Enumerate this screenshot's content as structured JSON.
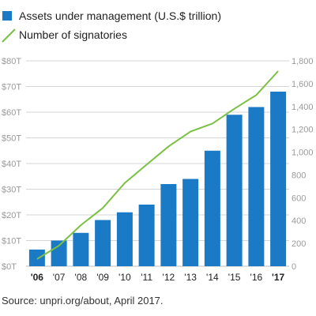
{
  "chart_data": {
    "type": "bar",
    "categories": [
      "'06",
      "'07",
      "'08",
      "'09",
      "'10",
      "'11",
      "'12",
      "'13",
      "'14",
      "'15",
      "'16",
      "'17"
    ],
    "bold_categories": [
      "'06",
      "'17"
    ],
    "series": [
      {
        "name": "Assets under management (U.S.$ trillion)",
        "type": "bar",
        "axis": "left",
        "color": "#1a7ac6",
        "values": [
          6.5,
          10,
          13,
          18,
          21,
          24,
          32,
          34,
          45,
          59,
          62,
          68
        ]
      },
      {
        "name": "Number of signatories",
        "type": "line",
        "axis": "right",
        "color": "#7ac143",
        "values": [
          63,
          180,
          360,
          510,
          730,
          890,
          1050,
          1180,
          1250,
          1380,
          1500,
          1710
        ]
      }
    ],
    "y_left": {
      "ylim": [
        0,
        80
      ],
      "ticks": [
        0,
        10,
        20,
        30,
        40,
        50,
        60,
        70,
        80
      ],
      "tick_labels": [
        "$0T",
        "$10T",
        "$20T",
        "$30T",
        "$40T",
        "$50T",
        "$60T",
        "$70T",
        "$80T"
      ]
    },
    "y_right": {
      "ylim": [
        0,
        1800
      ],
      "ticks": [
        0,
        200,
        400,
        600,
        800,
        1000,
        1200,
        1400,
        1600,
        1800
      ],
      "tick_labels": [
        "0",
        "200",
        "400",
        "600",
        "800",
        "1,000",
        "1,200",
        "1,400",
        "1,600",
        "1,800"
      ]
    },
    "grid": true,
    "legend_position": "top-left"
  },
  "source": "Source: unpri.org/about, April 2017."
}
